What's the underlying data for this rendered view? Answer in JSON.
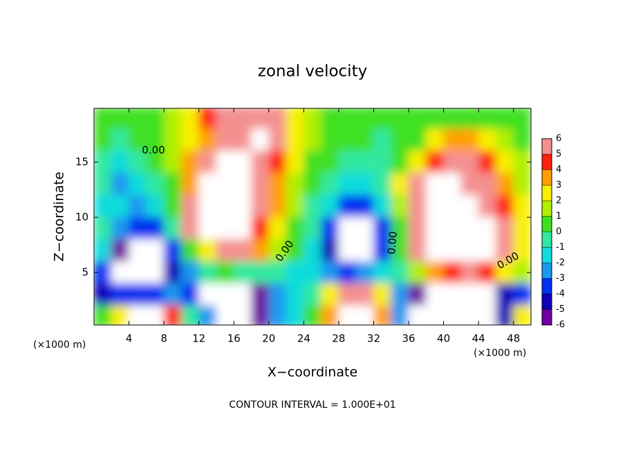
{
  "chart_data": {
    "type": "contour",
    "title": "zonal velocity",
    "x_label": "X−coordinate",
    "y_label": "Z−coordinate",
    "x_unit": "(×1000 m)",
    "note": "CONTOUR INTERVAL = 1.000E+01",
    "contour_label": "0.00",
    "xlim": [
      0,
      50
    ],
    "ylim": [
      0.25,
      19.875
    ],
    "xticks": [
      4,
      8,
      12,
      16,
      20,
      24,
      28,
      32,
      36,
      40,
      44,
      48
    ],
    "yticks": [
      5,
      10,
      15
    ],
    "x": [
      1,
      3,
      5,
      7,
      9,
      11,
      13,
      15,
      17,
      19,
      21,
      23,
      25,
      27,
      29,
      31,
      33,
      35,
      37,
      39,
      41,
      43,
      45,
      47,
      49
    ],
    "y": [
      19,
      17,
      15,
      13,
      11,
      9,
      7,
      5,
      3,
      1
    ],
    "z": [
      [
        0.5,
        0.5,
        0.5,
        0.8,
        1.5,
        2,
        4,
        5,
        6,
        6,
        5.5,
        2,
        1,
        0.5,
        0.5,
        0.3,
        0.2,
        0,
        0,
        0.3,
        0.5,
        0.5,
        0.5,
        0.5,
        0.5
      ],
      [
        0.3,
        -0.5,
        0.3,
        0.5,
        1,
        2,
        3.5,
        5,
        6,
        7,
        5,
        2.5,
        1,
        0.5,
        0.3,
        0,
        -0.3,
        0,
        0.5,
        2,
        3,
        3,
        2.5,
        1.5,
        0.5
      ],
      [
        -0.5,
        -1.5,
        -0.5,
        0,
        1,
        3,
        5,
        7,
        7,
        6,
        4,
        2,
        0.5,
        0,
        -0.5,
        -1,
        -0.5,
        0.5,
        2.5,
        4,
        5,
        5,
        4,
        2.5,
        1
      ],
      [
        -1,
        -2.5,
        -1.5,
        -0.5,
        0.5,
        3,
        6.5,
        7,
        7,
        5,
        3.5,
        1.5,
        0,
        -1,
        -2,
        -1.5,
        -0.5,
        2,
        5,
        7,
        7,
        6,
        5,
        3.5,
        1.5
      ],
      [
        -1.5,
        -2,
        -2.5,
        -2,
        0,
        5,
        7,
        7,
        7,
        5,
        3,
        1,
        -0.5,
        -2,
        -4,
        -4,
        -1.5,
        1,
        5,
        7,
        8,
        8,
        6,
        4,
        2
      ],
      [
        -1,
        -2.5,
        -4,
        -4,
        -1,
        5,
        7,
        7,
        7,
        4.5,
        2,
        0.5,
        -1,
        -4,
        -7,
        -7,
        -4,
        0,
        5,
        7,
        8,
        8,
        7,
        5,
        2
      ],
      [
        -2,
        -6,
        -7,
        -7,
        -4,
        0,
        2,
        5,
        6,
        3,
        1,
        0,
        -1.5,
        -5,
        -8,
        -7,
        -4,
        0,
        5,
        7,
        8,
        8,
        7,
        5,
        2
      ],
      [
        -4,
        -7,
        -8,
        -7,
        -5,
        -2.5,
        -1,
        0,
        -0.5,
        -0.5,
        -1,
        -1.5,
        -2,
        -3,
        -4,
        -3,
        -2,
        -1,
        1,
        3,
        4,
        5,
        4,
        2.5,
        1
      ],
      [
        -5,
        -4,
        -4,
        -4,
        -3,
        -4,
        -8,
        -7,
        -7,
        -6,
        -3,
        -2,
        -1,
        2,
        5,
        5,
        2,
        -3,
        -6,
        -8,
        -8,
        -8,
        -7,
        -5,
        -4
      ],
      [
        0,
        2,
        7,
        7,
        4,
        -1,
        -3,
        -7,
        -7,
        -6,
        -3,
        -1.5,
        0,
        3,
        7,
        7,
        3,
        -3,
        -7,
        -8,
        -8,
        -8,
        -7,
        -5,
        2
      ]
    ],
    "colorbar_ticks": [
      -6,
      -5,
      -4,
      -3,
      -2,
      -1,
      0,
      1,
      2,
      3,
      4,
      5,
      6
    ],
    "colors": [
      "#7000a0",
      "#1000b8",
      "#0030f0",
      "#1c98f0",
      "#10dcdc",
      "#30e8a0",
      "#40e020",
      "#b0f000",
      "#f8f000",
      "#ffa000",
      "#ff2010",
      "#f49090"
    ],
    "out_of_range_color": "#ffffff"
  }
}
